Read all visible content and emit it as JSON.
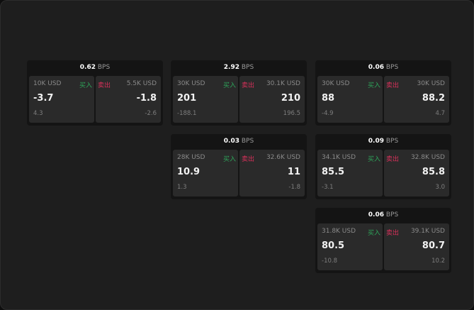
{
  "labels": {
    "buy": "买入",
    "sell": "卖出",
    "unit": "BPS"
  },
  "colors": {
    "buy": "#2ea55a",
    "sell": "#d8305a"
  },
  "panels": [
    {
      "spread": "0.62",
      "buy": {
        "size": "10K USD",
        "price": "-3.7",
        "change": "4.3"
      },
      "sell": {
        "size": "5.5K USD",
        "price": "-1.8",
        "change": "-2.6"
      }
    },
    {
      "spread": "2.92",
      "buy": {
        "size": "30K USD",
        "price": "201",
        "change": "-188.1"
      },
      "sell": {
        "size": "30.1K USD",
        "price": "210",
        "change": "196.5"
      }
    },
    {
      "spread": "0.06",
      "buy": {
        "size": "30K USD",
        "price": "88",
        "change": "-4.9"
      },
      "sell": {
        "size": "30K USD",
        "price": "88.2",
        "change": "4.7"
      }
    },
    {
      "spread": "0.03",
      "buy": {
        "size": "28K USD",
        "price": "10.9",
        "change": "1.3"
      },
      "sell": {
        "size": "32.6K USD",
        "price": "11",
        "change": "-1.8"
      }
    },
    {
      "spread": "0.09",
      "buy": {
        "size": "34.1K USD",
        "price": "85.5",
        "change": "-3.1"
      },
      "sell": {
        "size": "32.8K USD",
        "price": "85.8",
        "change": "3.0"
      }
    },
    {
      "spread": "0.06",
      "buy": {
        "size": "31.8K USD",
        "price": "80.5",
        "change": "-10.8"
      },
      "sell": {
        "size": "39.1K USD",
        "price": "80.7",
        "change": "10.2"
      }
    }
  ]
}
